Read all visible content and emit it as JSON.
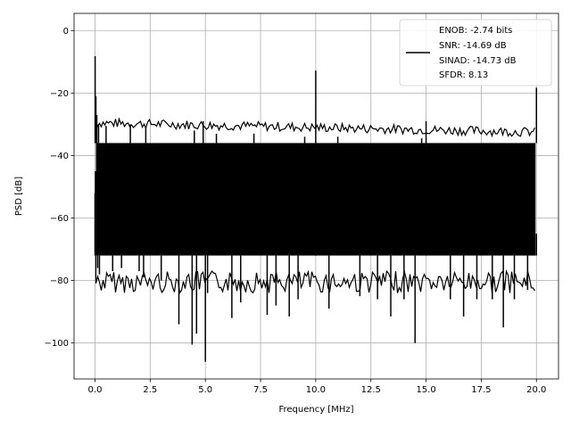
{
  "chart_data": {
    "type": "line",
    "title": "",
    "xlabel": "Frequency [MHz]",
    "ylabel": "PSD [dB]",
    "xlim": [
      -0.95,
      21.0
    ],
    "ylim": [
      -111.5,
      5.5
    ],
    "xticks": [
      0.0,
      2.5,
      5.0,
      7.5,
      10.0,
      12.5,
      15.0,
      17.5,
      20.0
    ],
    "xtick_labels": [
      "0.0",
      "2.5",
      "5.0",
      "7.5",
      "10.0",
      "12.5",
      "15.0",
      "17.5",
      "20.0"
    ],
    "yticks": [
      0,
      -20,
      -40,
      -60,
      -80,
      -100
    ],
    "ytick_labels": [
      "0",
      "−20",
      "−40",
      "−60",
      "−80",
      "−100"
    ],
    "grid": true,
    "legend": {
      "position": "upper-right",
      "entries": [
        "ENOB: -2.74 bits",
        "SNR: -14.69 dB",
        "SINAD: -14.73 dB",
        "SFDR: 8.13"
      ]
    },
    "series": [
      {
        "color": "#000000",
        "noise_band_db": {
          "upper": -36,
          "lower": -72
        },
        "x_range": [
          0.0,
          20.0
        ],
        "points": [
          [
            0.0,
            -52
          ],
          [
            0.005,
            -8.2
          ],
          [
            0.02,
            -45
          ],
          [
            0.04,
            -21
          ],
          [
            0.06,
            -62
          ],
          [
            0.08,
            -27
          ],
          [
            0.12,
            -76
          ],
          [
            0.16,
            -30
          ],
          [
            0.2,
            -78
          ],
          [
            0.5,
            -30.5
          ],
          [
            0.8,
            -77
          ],
          [
            1.2,
            -76
          ],
          [
            1.6,
            -30
          ],
          [
            2.0,
            -77
          ],
          [
            2.2,
            -79
          ],
          [
            2.3,
            -31
          ],
          [
            3.0,
            -80
          ],
          [
            3.8,
            -94
          ],
          [
            4.4,
            -100.5
          ],
          [
            4.5,
            -32
          ],
          [
            4.6,
            -97
          ],
          [
            4.9,
            -29
          ],
          [
            5.0,
            -106
          ],
          [
            5.1,
            -84
          ],
          [
            5.5,
            -33
          ],
          [
            6.2,
            -92
          ],
          [
            6.6,
            -87
          ],
          [
            7.2,
            -33
          ],
          [
            7.8,
            -91
          ],
          [
            8.2,
            -88
          ],
          [
            8.8,
            -91.5
          ],
          [
            9.2,
            -86
          ],
          [
            9.5,
            -34
          ],
          [
            9.99,
            -58
          ],
          [
            10.0,
            -12.8
          ],
          [
            10.01,
            -60
          ],
          [
            10.6,
            -89
          ],
          [
            11.0,
            -34
          ],
          [
            12.0,
            -85
          ],
          [
            12.8,
            -86
          ],
          [
            13.4,
            -91.5
          ],
          [
            14.0,
            -86
          ],
          [
            14.5,
            -100
          ],
          [
            14.8,
            -34.5
          ],
          [
            15.0,
            -29
          ],
          [
            15.01,
            -58
          ],
          [
            16.1,
            -86
          ],
          [
            16.7,
            -91.5
          ],
          [
            17.3,
            -86
          ],
          [
            18.0,
            -86
          ],
          [
            18.5,
            -95
          ],
          [
            19.0,
            -86
          ],
          [
            19.6,
            -83
          ],
          [
            20.0,
            -18.3
          ],
          [
            20.0,
            -65
          ]
        ]
      }
    ]
  }
}
